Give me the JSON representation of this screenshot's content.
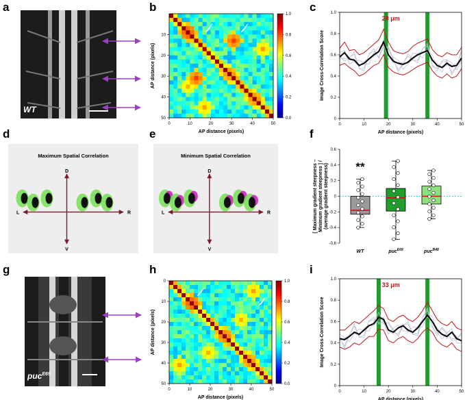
{
  "panel_letters": {
    "a": "a",
    "b": "b",
    "c": "c",
    "d": "d",
    "e": "e",
    "f": "f",
    "g": "g",
    "h": "h",
    "i": "i"
  },
  "micro": {
    "a_genotype": "WT",
    "g_genotype": "puc",
    "g_sup": "E69"
  },
  "heatmap": {
    "xlabel": "AP distance (pixels)",
    "ylabel": "AP distance (pixels)",
    "b_yticks": [
      "10",
      "20",
      "30",
      "40",
      "50"
    ],
    "h_yticks": [
      "0",
      "10",
      "20",
      "30",
      "40",
      "50"
    ],
    "xticks": [
      "0",
      "10",
      "20",
      "30",
      "40",
      "50"
    ],
    "colorbar_ticks": [
      "0.0",
      "0.2",
      "0.4",
      "0.6",
      "0.8",
      "1.0"
    ]
  },
  "diagram_d": {
    "title": "Maximum Spatial Correlation",
    "D": "D",
    "V": "V",
    "L": "L",
    "R": "R"
  },
  "diagram_e": {
    "title": "Minimum Spatial Correlation",
    "D": "D",
    "V": "V",
    "L": "L",
    "R": "R"
  },
  "colors": {
    "green": "#1f9e2d",
    "red": "#c0151b",
    "magenta": "#d020c0",
    "axis_dark": "#7a1a2a",
    "panel_bg": "#eeeeee",
    "dashed": "#33cccc"
  },
  "chart_data": [
    {
      "type": "line",
      "id": "c",
      "annotation": "28 μm",
      "xlabel": "AP distance (pixels)",
      "ylabel": "Image Cross-Correlation Score",
      "xlim": [
        0,
        50
      ],
      "ylim": [
        0,
        1.0
      ],
      "xticks": [
        "0",
        "10",
        "20",
        "30",
        "40",
        "50"
      ],
      "yticks": [
        "0",
        "0.2",
        "0.4",
        "0.6",
        "0.8",
        "1.0"
      ],
      "green_bars_x": [
        19,
        36
      ],
      "x": [
        0,
        2,
        4,
        6,
        8,
        10,
        12,
        14,
        16,
        18,
        20,
        22,
        24,
        26,
        28,
        30,
        32,
        34,
        36,
        38,
        40,
        42,
        44,
        46,
        48,
        50
      ],
      "series": [
        {
          "role": "mean",
          "values": [
            0.58,
            0.62,
            0.56,
            0.55,
            0.5,
            0.52,
            0.56,
            0.6,
            0.63,
            0.72,
            0.6,
            0.54,
            0.52,
            0.51,
            0.53,
            0.57,
            0.6,
            0.62,
            0.64,
            0.55,
            0.5,
            0.48,
            0.52,
            0.49,
            0.5,
            0.57
          ]
        },
        {
          "role": "upper",
          "values": [
            0.66,
            0.72,
            0.64,
            0.65,
            0.6,
            0.62,
            0.66,
            0.7,
            0.74,
            0.84,
            0.72,
            0.64,
            0.62,
            0.61,
            0.63,
            0.68,
            0.71,
            0.73,
            0.75,
            0.65,
            0.6,
            0.58,
            0.62,
            0.6,
            0.6,
            0.67
          ]
        },
        {
          "role": "lower",
          "values": [
            0.5,
            0.52,
            0.48,
            0.45,
            0.4,
            0.42,
            0.46,
            0.5,
            0.52,
            0.6,
            0.48,
            0.44,
            0.42,
            0.41,
            0.43,
            0.46,
            0.49,
            0.51,
            0.53,
            0.45,
            0.4,
            0.38,
            0.42,
            0.38,
            0.4,
            0.47
          ]
        }
      ]
    },
    {
      "type": "box",
      "id": "f",
      "ylabel_lines": [
        "[ Maximum gradient steepness –",
        "Minimum gradient steepness ] /",
        "(average gradient steepness)"
      ],
      "ylim": [
        -0.6,
        0.6
      ],
      "yticks": [
        "-0.6",
        "-0.4",
        "-0.2",
        "0",
        "0.2",
        "0.4",
        "0.6"
      ],
      "significance": "**",
      "categories": [
        {
          "label": "WT",
          "sup": "",
          "q1": -0.23,
          "median": -0.18,
          "q3": 0.0,
          "min": -0.4,
          "max": 0.22
        },
        {
          "label": "puc",
          "sup": "E69",
          "q1": -0.19,
          "median": -0.02,
          "q3": 0.1,
          "min": -0.55,
          "max": 0.45
        },
        {
          "label": "puc",
          "sup": "B48",
          "q1": -0.1,
          "median": 0.0,
          "q3": 0.13,
          "min": -0.29,
          "max": 0.33
        }
      ],
      "reference_line": 0.0
    },
    {
      "type": "line",
      "id": "i",
      "annotation": "33 μm",
      "xlabel": "AP distance (pixels)",
      "ylabel": "Image Cross-Correlation Score",
      "xlim": [
        0,
        50
      ],
      "ylim": [
        0,
        1.0
      ],
      "xticks": [
        "0",
        "10",
        "20",
        "30",
        "40",
        "50"
      ],
      "yticks": [
        "0",
        "0.2",
        "0.4",
        "0.6",
        "0.8",
        "1.0"
      ],
      "green_bars_x": [
        16,
        36
      ],
      "x": [
        0,
        2,
        4,
        6,
        8,
        10,
        12,
        14,
        16,
        18,
        20,
        22,
        24,
        26,
        28,
        30,
        32,
        34,
        36,
        38,
        40,
        42,
        44,
        46,
        48,
        50
      ],
      "series": [
        {
          "role": "mean",
          "values": [
            0.44,
            0.43,
            0.46,
            0.5,
            0.48,
            0.52,
            0.56,
            0.58,
            0.64,
            0.62,
            0.52,
            0.5,
            0.54,
            0.56,
            0.52,
            0.5,
            0.54,
            0.6,
            0.66,
            0.6,
            0.52,
            0.48,
            0.46,
            0.5,
            0.44,
            0.42
          ]
        },
        {
          "role": "upper",
          "values": [
            0.52,
            0.52,
            0.56,
            0.6,
            0.58,
            0.62,
            0.66,
            0.7,
            0.75,
            0.72,
            0.62,
            0.6,
            0.64,
            0.66,
            0.62,
            0.6,
            0.64,
            0.7,
            0.78,
            0.7,
            0.62,
            0.58,
            0.56,
            0.6,
            0.54,
            0.52
          ]
        },
        {
          "role": "lower",
          "values": [
            0.36,
            0.34,
            0.36,
            0.4,
            0.38,
            0.42,
            0.46,
            0.46,
            0.53,
            0.52,
            0.42,
            0.4,
            0.44,
            0.46,
            0.42,
            0.4,
            0.44,
            0.5,
            0.54,
            0.5,
            0.42,
            0.38,
            0.36,
            0.4,
            0.34,
            0.32
          ]
        }
      ]
    }
  ]
}
